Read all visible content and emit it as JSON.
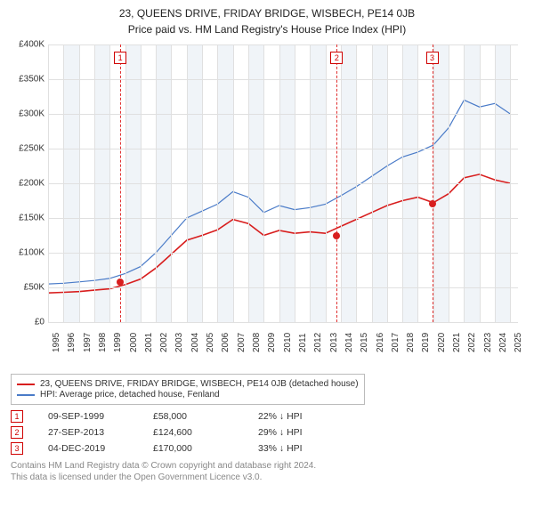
{
  "titles": {
    "line1": "23, QUEENS DRIVE, FRIDAY BRIDGE, WISBECH, PE14 0JB",
    "line2": "Price paid vs. HM Land Registry's House Price Index (HPI)"
  },
  "chart": {
    "type": "line",
    "x_years": [
      1995,
      1996,
      1997,
      1998,
      1999,
      2000,
      2001,
      2002,
      2003,
      2004,
      2005,
      2006,
      2007,
      2008,
      2009,
      2010,
      2011,
      2012,
      2013,
      2014,
      2015,
      2016,
      2017,
      2018,
      2019,
      2020,
      2021,
      2022,
      2023,
      2024,
      2025
    ],
    "y_ticks": [
      0,
      50000,
      100000,
      150000,
      200000,
      250000,
      300000,
      350000,
      400000
    ],
    "y_labels": [
      "£0",
      "£50K",
      "£100K",
      "£150K",
      "£200K",
      "£250K",
      "£300K",
      "£350K",
      "£400K"
    ],
    "ylim": [
      0,
      400000
    ],
    "xlim": [
      1995,
      2025.5
    ],
    "grid_color": "#e0e0e0",
    "background_color": "#ffffff",
    "band_color": "#f0f4f8",
    "series": [
      {
        "name": "HPI: Average price, detached house, Fenland",
        "color": "#4a7bc8",
        "line_width": 1.2,
        "points": [
          [
            1995,
            55000
          ],
          [
            1996,
            56000
          ],
          [
            1997,
            58000
          ],
          [
            1998,
            60000
          ],
          [
            1999,
            63000
          ],
          [
            2000,
            70000
          ],
          [
            2001,
            80000
          ],
          [
            2002,
            100000
          ],
          [
            2003,
            125000
          ],
          [
            2004,
            150000
          ],
          [
            2005,
            160000
          ],
          [
            2006,
            170000
          ],
          [
            2007,
            188000
          ],
          [
            2008,
            180000
          ],
          [
            2009,
            158000
          ],
          [
            2010,
            168000
          ],
          [
            2011,
            162000
          ],
          [
            2012,
            165000
          ],
          [
            2013,
            170000
          ],
          [
            2014,
            182000
          ],
          [
            2015,
            195000
          ],
          [
            2016,
            210000
          ],
          [
            2017,
            225000
          ],
          [
            2018,
            238000
          ],
          [
            2019,
            245000
          ],
          [
            2020,
            255000
          ],
          [
            2021,
            280000
          ],
          [
            2022,
            320000
          ],
          [
            2023,
            310000
          ],
          [
            2024,
            315000
          ],
          [
            2025,
            300000
          ]
        ]
      },
      {
        "name": "23, QUEENS DRIVE, FRIDAY BRIDGE, WISBECH, PE14 0JB (detached house)",
        "color": "#d81e1e",
        "line_width": 1.6,
        "points": [
          [
            1995,
            42000
          ],
          [
            1996,
            43000
          ],
          [
            1997,
            44000
          ],
          [
            1998,
            46000
          ],
          [
            1999,
            48000
          ],
          [
            2000,
            54000
          ],
          [
            2001,
            62000
          ],
          [
            2002,
            78000
          ],
          [
            2003,
            98000
          ],
          [
            2004,
            118000
          ],
          [
            2005,
            125000
          ],
          [
            2006,
            133000
          ],
          [
            2007,
            148000
          ],
          [
            2008,
            142000
          ],
          [
            2009,
            125000
          ],
          [
            2010,
            132000
          ],
          [
            2011,
            128000
          ],
          [
            2012,
            130000
          ],
          [
            2013,
            128000
          ],
          [
            2014,
            138000
          ],
          [
            2015,
            148000
          ],
          [
            2016,
            158000
          ],
          [
            2017,
            168000
          ],
          [
            2018,
            175000
          ],
          [
            2019,
            180000
          ],
          [
            2020,
            172000
          ],
          [
            2021,
            185000
          ],
          [
            2022,
            208000
          ],
          [
            2023,
            213000
          ],
          [
            2024,
            205000
          ],
          [
            2025,
            200000
          ]
        ]
      }
    ],
    "event_lines": [
      {
        "n": "1",
        "x": 1999.69,
        "price": 58000,
        "line_color": "#e03030",
        "marker_color": "#d81e1e"
      },
      {
        "n": "2",
        "x": 2013.74,
        "price": 124600,
        "line_color": "#e03030",
        "marker_color": "#d81e1e"
      },
      {
        "n": "3",
        "x": 2019.93,
        "price": 170000,
        "line_color": "#e03030",
        "marker_color": "#d81e1e"
      }
    ],
    "label_fontsize": 10
  },
  "legend": {
    "items": [
      {
        "color": "#d81e1e",
        "label": "23, QUEENS DRIVE, FRIDAY BRIDGE, WISBECH, PE14 0JB (detached house)"
      },
      {
        "color": "#4a7bc8",
        "label": "HPI: Average price, detached house, Fenland"
      }
    ]
  },
  "events": [
    {
      "n": "1",
      "date": "09-SEP-1999",
      "price": "£58,000",
      "diff": "22% ↓ HPI"
    },
    {
      "n": "2",
      "date": "27-SEP-2013",
      "price": "£124,600",
      "diff": "29% ↓ HPI"
    },
    {
      "n": "3",
      "date": "04-DEC-2019",
      "price": "£170,000",
      "diff": "33% ↓ HPI"
    }
  ],
  "footer": {
    "line1": "Contains HM Land Registry data © Crown copyright and database right 2024.",
    "line2": "This data is licensed under the Open Government Licence v3.0."
  }
}
